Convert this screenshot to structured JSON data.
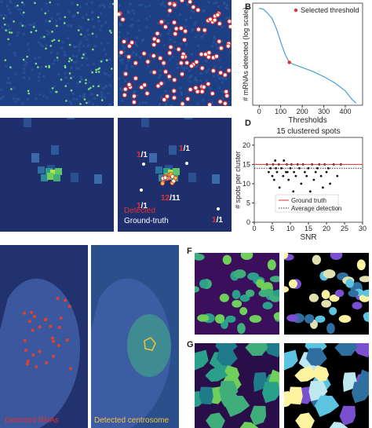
{
  "panels": {
    "B": "B",
    "D": "D",
    "F": "F",
    "G": "G",
    "C": {
      "annotations": [
        {
          "detected": 1,
          "ground_truth": 1
        },
        {
          "detected": 1,
          "ground_truth": 1
        },
        {
          "detected": 12,
          "ground_truth": 11
        },
        {
          "detected": 1,
          "ground_truth": 1
        },
        {
          "detected": 1,
          "ground_truth": 1
        }
      ],
      "separator": "/",
      "legend_detected": "Detected",
      "legend_ground_truth": "Ground-truth"
    },
    "E": {
      "label_rnas": "Detected RNAs",
      "label_centrosome": "Detected centrosome"
    }
  },
  "chart_data": [
    {
      "type": "line",
      "ylabel": "# mRNAs detected (log scale)",
      "xlabel": "Thresholds",
      "color": "#4a9fd0",
      "x": [
        0,
        20,
        40,
        60,
        80,
        100,
        120,
        140,
        160,
        200,
        250,
        300,
        350,
        400,
        430,
        450
      ],
      "values": [
        95,
        94,
        90,
        85,
        75,
        62,
        50,
        42,
        40,
        37,
        33,
        28,
        22,
        14,
        6,
        2
      ],
      "xlim": [
        -30,
        480
      ],
      "ylim": [
        0,
        100
      ],
      "xticks": [
        0,
        100,
        200,
        300,
        400
      ],
      "highlight": {
        "name": "Selected threshold",
        "x": 140,
        "y": 42,
        "color": "#e03030"
      }
    },
    {
      "type": "scatter",
      "title": "15 clustered spots",
      "xlabel": "SNR",
      "ylabel": "# spots per cluster",
      "color": "#111",
      "x": [
        3.5,
        4,
        4.5,
        5,
        5.2,
        5.5,
        6,
        6.3,
        6.8,
        7,
        7.5,
        8,
        8.2,
        8.8,
        9,
        9.5,
        10,
        10.3,
        10.8,
        11,
        11.5,
        12,
        12.5,
        13,
        13.5,
        14,
        14.5,
        15,
        15.5,
        16,
        16.5,
        17,
        17.5,
        18,
        18.5,
        19,
        19.5,
        20,
        20.5,
        21,
        22,
        23,
        24,
        5.8,
        9.2
      ],
      "values": [
        15,
        13,
        14,
        12,
        15,
        11,
        14,
        13,
        15,
        9,
        14,
        12,
        16,
        13,
        15,
        11,
        14,
        15,
        8,
        13,
        12,
        15,
        14,
        10,
        15,
        13,
        12,
        14,
        8,
        15,
        11,
        13,
        14,
        15,
        12,
        9,
        15,
        13,
        14,
        10,
        15,
        12,
        15,
        16,
        13
      ],
      "xlim": [
        0,
        30
      ],
      "ylim": [
        0,
        22
      ],
      "xticks": [
        0,
        5,
        10,
        15,
        20,
        25,
        30
      ],
      "yticks": [
        0,
        5,
        10,
        15,
        20
      ],
      "reference_lines": [
        {
          "name": "Ground truth",
          "value": 15,
          "color": "#d33333",
          "style": "solid"
        },
        {
          "name": "Average detection",
          "value": 14,
          "color": "#333333",
          "style": "dotted"
        }
      ]
    }
  ]
}
